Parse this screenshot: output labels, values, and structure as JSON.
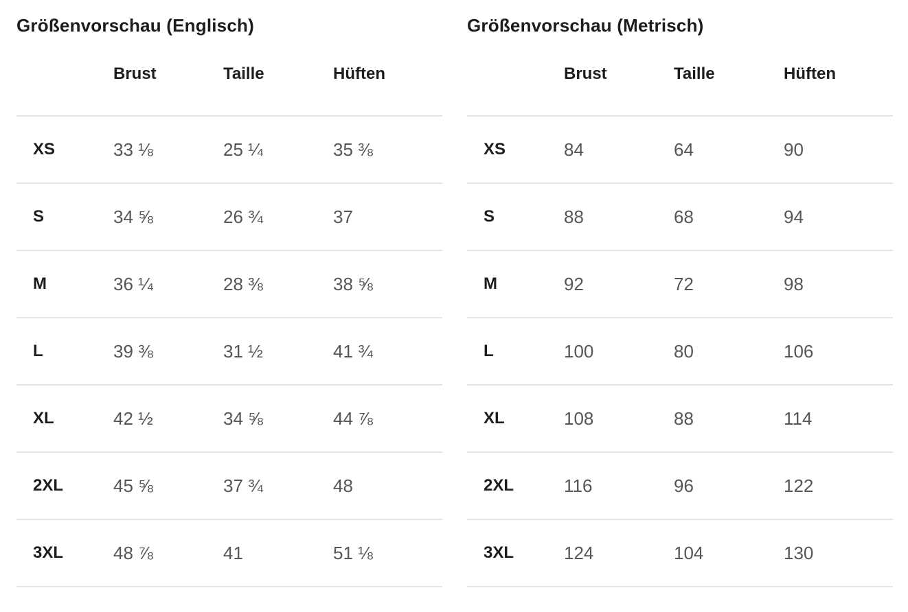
{
  "tables": [
    {
      "title": "Größenvorschau (Englisch)",
      "columns": [
        "Brust",
        "Taille",
        "Hüften"
      ],
      "rows": [
        {
          "size": "XS",
          "values": [
            "33 ⅛",
            "25 ¼",
            "35 ⅜"
          ]
        },
        {
          "size": "S",
          "values": [
            "34 ⅝",
            "26 ¾",
            "37"
          ]
        },
        {
          "size": "M",
          "values": [
            "36 ¼",
            "28 ⅜",
            "38 ⅝"
          ]
        },
        {
          "size": "L",
          "values": [
            "39 ⅜",
            "31 ½",
            "41 ¾"
          ]
        },
        {
          "size": "XL",
          "values": [
            "42 ½",
            "34 ⅝",
            "44 ⅞"
          ]
        },
        {
          "size": "2XL",
          "values": [
            "45 ⅝",
            "37 ¾",
            "48"
          ]
        },
        {
          "size": "3XL",
          "values": [
            "48 ⅞",
            "41",
            "51 ⅛"
          ]
        }
      ]
    },
    {
      "title": "Größenvorschau (Metrisch)",
      "columns": [
        "Brust",
        "Taille",
        "Hüften"
      ],
      "rows": [
        {
          "size": "XS",
          "values": [
            "84",
            "64",
            "90"
          ]
        },
        {
          "size": "S",
          "values": [
            "88",
            "68",
            "94"
          ]
        },
        {
          "size": "M",
          "values": [
            "92",
            "72",
            "98"
          ]
        },
        {
          "size": "L",
          "values": [
            "100",
            "80",
            "106"
          ]
        },
        {
          "size": "XL",
          "values": [
            "108",
            "88",
            "114"
          ]
        },
        {
          "size": "2XL",
          "values": [
            "116",
            "96",
            "122"
          ]
        },
        {
          "size": "3XL",
          "values": [
            "124",
            "104",
            "130"
          ]
        }
      ]
    }
  ],
  "colors": {
    "text_dark": "#1d1d1f",
    "text_gray": "#55565a",
    "divider": "#e4e4e6",
    "background": "#ffffff"
  }
}
